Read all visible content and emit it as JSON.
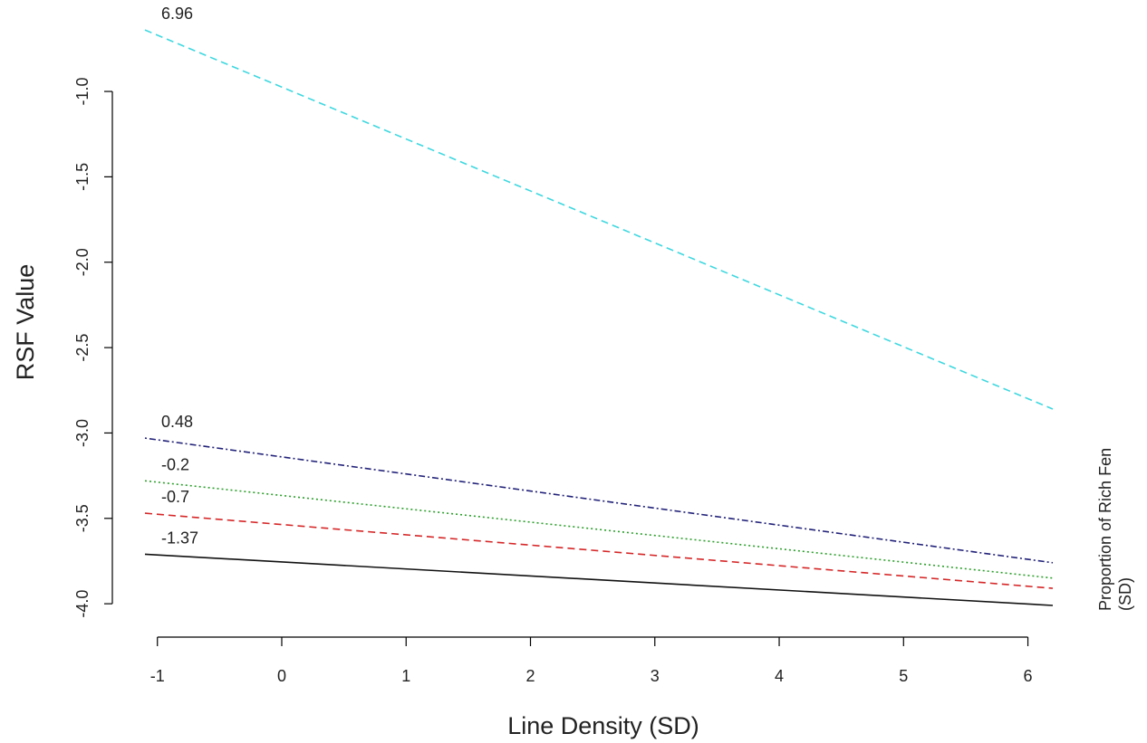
{
  "chart_data": {
    "type": "line",
    "xlabel": "Line Density (SD)",
    "ylabel": "RSF Value",
    "legend_title": "Proportion of Rich Fen (SD)",
    "legend_title_lines": [
      "Proportion of Rich Fen",
      "(SD)"
    ],
    "xlim": [
      -1.1,
      6.2
    ],
    "ylim": [
      -4.1,
      -0.65
    ],
    "x_ticks": [
      -1,
      0,
      1,
      2,
      3,
      4,
      5,
      6
    ],
    "x_tick_labels": [
      "-1",
      "0",
      "1",
      "2",
      "3",
      "4",
      "5",
      "6"
    ],
    "y_ticks": [
      -1.0,
      -1.5,
      -2.0,
      -2.5,
      -3.0,
      -3.5,
      -4.0
    ],
    "y_tick_labels": [
      "-1.0",
      "-1.5",
      "-2.0",
      "-2.5",
      "-3.0",
      "-3.5",
      "-4.0"
    ],
    "grid": false,
    "legend_placement": "right",
    "series": [
      {
        "name": "6.96",
        "x": [
          -1.1,
          6.2
        ],
        "y": [
          -0.64,
          -2.86
        ],
        "color": "#3fd8e0",
        "dash": "dashed"
      },
      {
        "name": "0.48",
        "x": [
          -1.1,
          6.2
        ],
        "y": [
          -3.03,
          -3.76
        ],
        "color": "#22227a",
        "dash": "dotdash"
      },
      {
        "name": "-0.2",
        "x": [
          -1.1,
          6.2
        ],
        "y": [
          -3.28,
          -3.85
        ],
        "color": "#2ca02c",
        "dash": "dotted"
      },
      {
        "name": "-0.7",
        "x": [
          -1.1,
          6.2
        ],
        "y": [
          -3.47,
          -3.91
        ],
        "color": "#d62728",
        "dash": "dashed"
      },
      {
        "name": "-1.37",
        "x": [
          -1.1,
          6.2
        ],
        "y": [
          -3.71,
          -4.01
        ],
        "color": "#111111",
        "dash": "solid"
      }
    ]
  }
}
